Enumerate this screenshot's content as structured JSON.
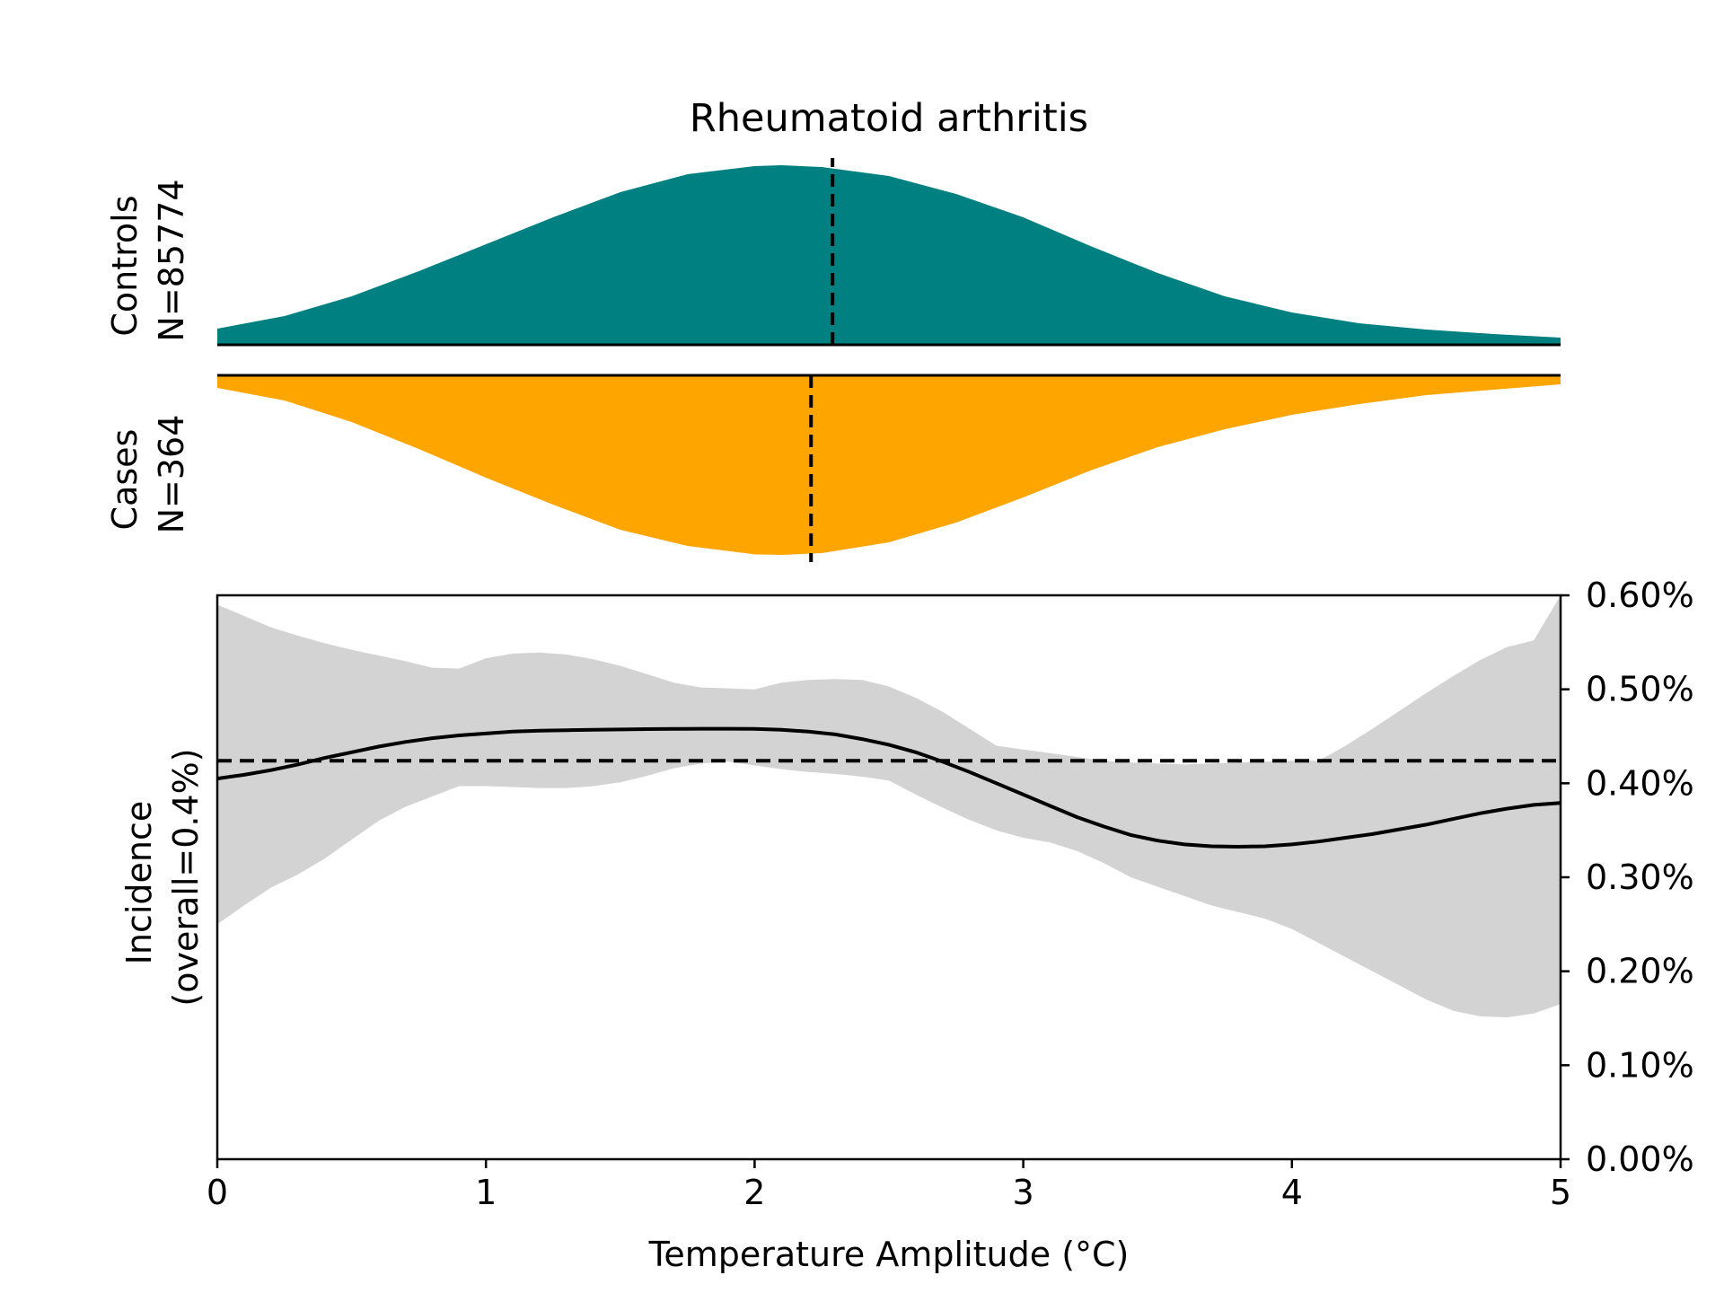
{
  "chart_data": [
    {
      "type": "area",
      "title": "Rheumatoid arthritis",
      "label_line1": "Controls",
      "label_line2": "N=85774",
      "color": "#008080",
      "x": [
        0,
        0.25,
        0.5,
        0.75,
        1.0,
        1.25,
        1.5,
        1.75,
        2.0,
        2.1,
        2.25,
        2.5,
        2.75,
        3.0,
        3.25,
        3.5,
        3.75,
        4.0,
        4.25,
        4.5,
        4.75,
        5.0
      ],
      "density": [
        0.09,
        0.16,
        0.27,
        0.41,
        0.56,
        0.71,
        0.85,
        0.95,
        0.995,
        1.0,
        0.99,
        0.94,
        0.84,
        0.71,
        0.55,
        0.4,
        0.27,
        0.18,
        0.12,
        0.085,
        0.06,
        0.04
      ],
      "mean_x": 2.29
    },
    {
      "type": "area",
      "label_line1": "Cases",
      "label_line2": "N=364",
      "color": "#FFA500",
      "x": [
        0,
        0.25,
        0.5,
        0.75,
        1.0,
        1.25,
        1.5,
        1.75,
        2.0,
        2.1,
        2.25,
        2.5,
        2.75,
        3.0,
        3.25,
        3.5,
        3.75,
        4.0,
        4.25,
        4.5,
        4.75,
        5.0
      ],
      "density": [
        0.07,
        0.14,
        0.26,
        0.41,
        0.57,
        0.72,
        0.86,
        0.95,
        0.997,
        1.0,
        0.99,
        0.93,
        0.82,
        0.68,
        0.53,
        0.4,
        0.3,
        0.22,
        0.16,
        0.11,
        0.08,
        0.05
      ],
      "mean_x": 2.21
    },
    {
      "type": "line",
      "xlabel": "Temperature Amplitude (°C)",
      "ylabel_line1": "Incidence",
      "ylabel_line2": "(overall=0.4%)",
      "xlim": [
        0,
        5
      ],
      "ylim": [
        0,
        0.6
      ],
      "xticks": [
        0,
        1,
        2,
        3,
        4,
        5
      ],
      "xtick_labels": [
        "0",
        "1",
        "2",
        "3",
        "4",
        "5"
      ],
      "yticks": [
        0,
        0.1,
        0.2,
        0.3,
        0.4,
        0.5,
        0.6
      ],
      "ytick_labels": [
        "0.00%",
        "0.10%",
        "0.20%",
        "0.30%",
        "0.40%",
        "0.50%",
        "0.60%"
      ],
      "overall_rate": 0.424,
      "line_color": "#000000",
      "band_color": "#d3d3d3",
      "x": [
        0,
        0.1,
        0.2,
        0.3,
        0.4,
        0.5,
        0.6,
        0.7,
        0.8,
        0.9,
        1.0,
        1.1,
        1.2,
        1.3,
        1.4,
        1.5,
        1.6,
        1.7,
        1.8,
        1.9,
        2.0,
        2.1,
        2.2,
        2.3,
        2.4,
        2.5,
        2.6,
        2.7,
        2.8,
        2.9,
        3.0,
        3.1,
        3.2,
        3.3,
        3.4,
        3.5,
        3.6,
        3.7,
        3.8,
        3.9,
        4.0,
        4.1,
        4.2,
        4.3,
        4.4,
        4.5,
        4.6,
        4.7,
        4.8,
        4.9,
        5.0
      ],
      "y": [
        0.405,
        0.409,
        0.414,
        0.42,
        0.427,
        0.433,
        0.439,
        0.444,
        0.448,
        0.451,
        0.453,
        0.455,
        0.456,
        0.4565,
        0.457,
        0.4573,
        0.4576,
        0.4578,
        0.458,
        0.458,
        0.4578,
        0.457,
        0.455,
        0.452,
        0.447,
        0.441,
        0.433,
        0.423,
        0.412,
        0.4,
        0.388,
        0.376,
        0.364,
        0.354,
        0.345,
        0.339,
        0.335,
        0.333,
        0.3325,
        0.333,
        0.335,
        0.338,
        0.342,
        0.346,
        0.351,
        0.356,
        0.362,
        0.368,
        0.373,
        0.377,
        0.379
      ],
      "upper": [
        0.59,
        0.578,
        0.566,
        0.557,
        0.549,
        0.542,
        0.536,
        0.53,
        0.523,
        0.522,
        0.533,
        0.538,
        0.539,
        0.537,
        0.532,
        0.525,
        0.516,
        0.507,
        0.502,
        0.501,
        0.5,
        0.507,
        0.51,
        0.511,
        0.51,
        0.503,
        0.491,
        0.476,
        0.458,
        0.44,
        0.436,
        0.432,
        0.428,
        0.424,
        0.422,
        0.421,
        0.42,
        0.421,
        0.422,
        0.423,
        0.424,
        0.424,
        0.44,
        0.458,
        0.477,
        0.496,
        0.514,
        0.531,
        0.545,
        0.552,
        0.62
      ],
      "lower": [
        0.25,
        0.27,
        0.289,
        0.303,
        0.32,
        0.34,
        0.36,
        0.375,
        0.386,
        0.397,
        0.397,
        0.396,
        0.395,
        0.395,
        0.397,
        0.401,
        0.408,
        0.416,
        0.421,
        0.423,
        0.419,
        0.415,
        0.412,
        0.41,
        0.407,
        0.403,
        0.388,
        0.374,
        0.361,
        0.35,
        0.342,
        0.337,
        0.328,
        0.315,
        0.3,
        0.29,
        0.28,
        0.27,
        0.263,
        0.256,
        0.245,
        0.23,
        0.215,
        0.2,
        0.185,
        0.17,
        0.158,
        0.152,
        0.151,
        0.155,
        0.165
      ]
    }
  ]
}
